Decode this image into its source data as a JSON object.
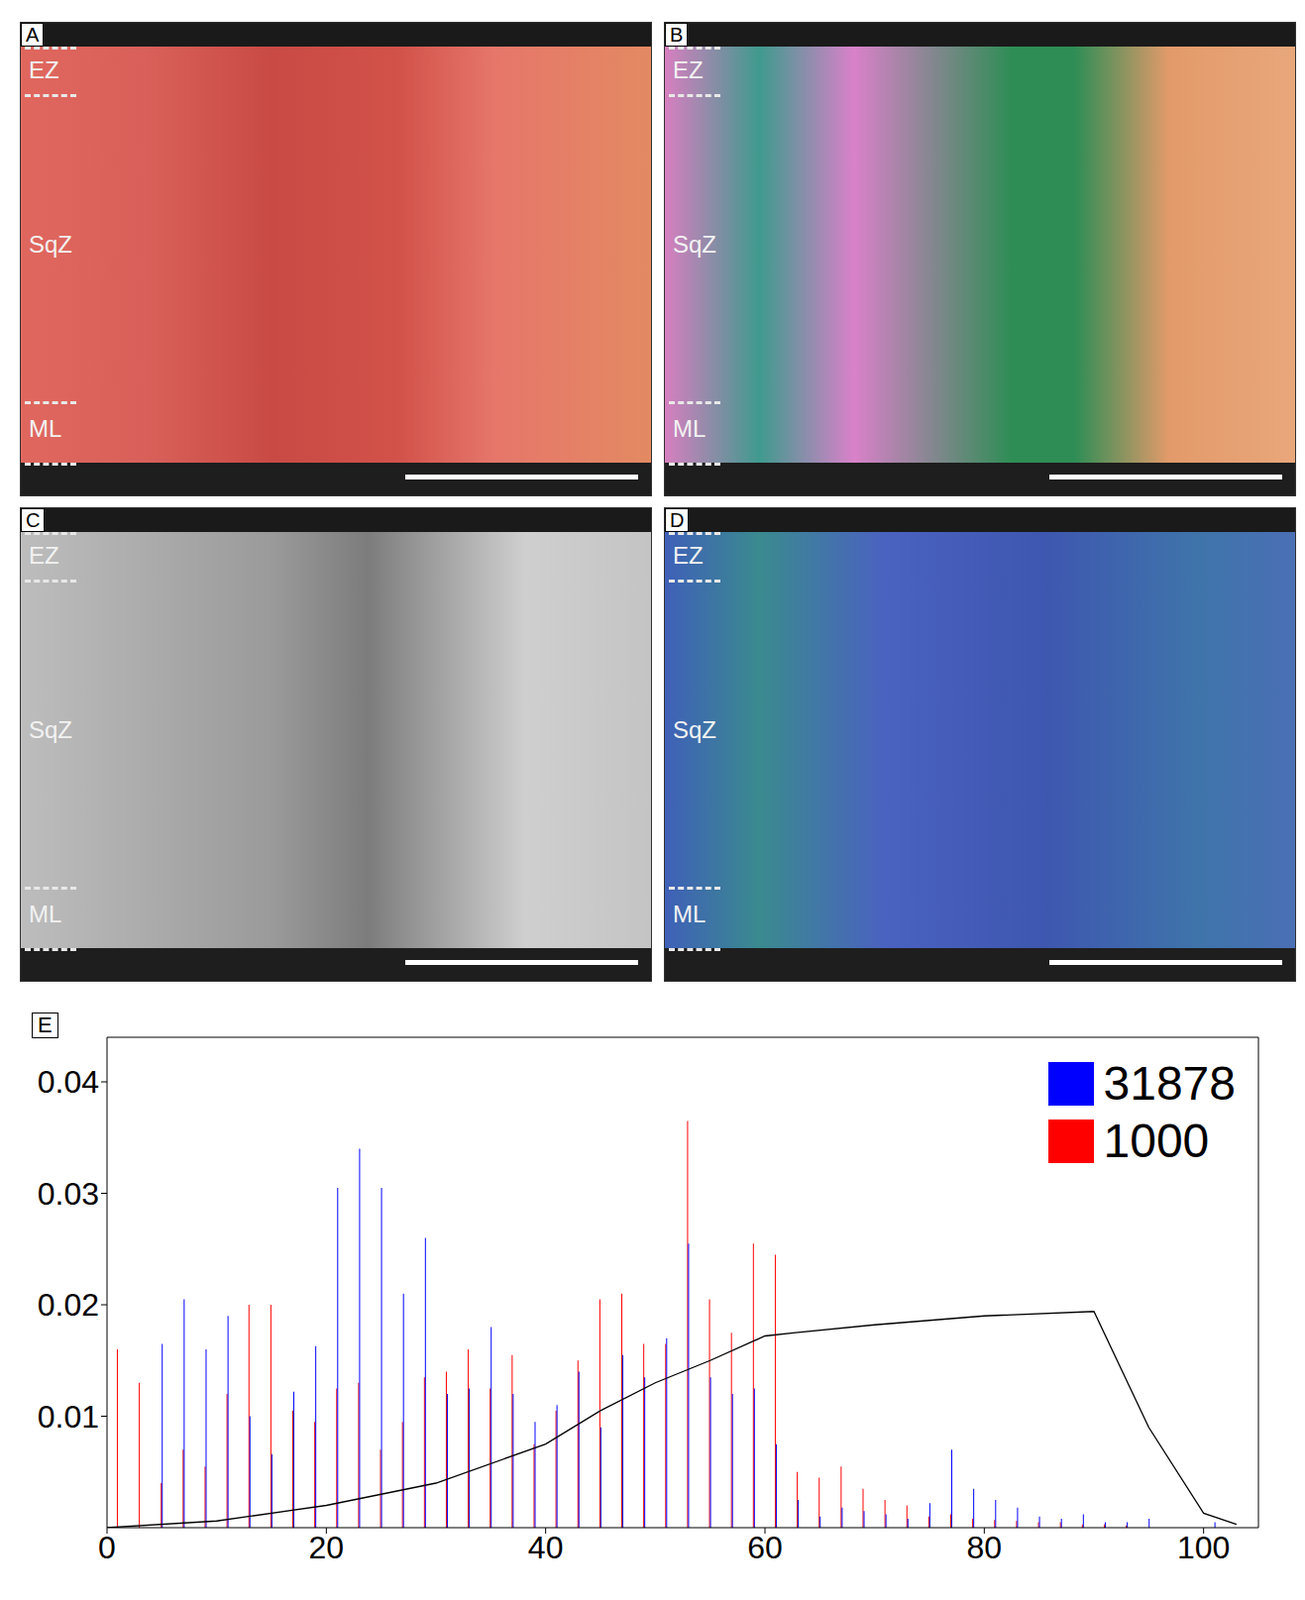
{
  "panels": [
    {
      "letter": "A",
      "labels": [
        "EZ",
        "SqZ",
        "ML"
      ]
    },
    {
      "letter": "B",
      "labels": [
        "EZ",
        "SqZ",
        "ML"
      ]
    },
    {
      "letter": "C",
      "labels": [
        "EZ",
        "SqZ",
        "ML"
      ]
    },
    {
      "letter": "D",
      "labels": [
        "EZ",
        "SqZ",
        "ML"
      ]
    }
  ],
  "chart_data": {
    "type": "histogram",
    "panel_label": "E",
    "bins": [
      0,
      2,
      4,
      6,
      8,
      10,
      12,
      14,
      16,
      18,
      20,
      22,
      24,
      26,
      28,
      30,
      32,
      34,
      36,
      38,
      40,
      42,
      44,
      46,
      48,
      50,
      52,
      54,
      56,
      58,
      60,
      62,
      64,
      66,
      68,
      70,
      72,
      74,
      76,
      78,
      80,
      82,
      84,
      86,
      88,
      90,
      92,
      94,
      96,
      98,
      100,
      102,
      104
    ],
    "series": [
      {
        "name": "31878",
        "color": "#0000ff",
        "values": [
          0,
          0,
          0.0165,
          0.0205,
          0.016,
          0.019,
          0.01,
          0.0066,
          0.0122,
          0.0163,
          0.0305,
          0.034,
          0.0305,
          0.021,
          0.026,
          0.012,
          0.0125,
          0.018,
          0.012,
          0.0095,
          0.011,
          0.014,
          0.009,
          0.0155,
          0.0135,
          0.017,
          0.0255,
          0.0135,
          0.012,
          0.0125,
          0.0075,
          0.0025,
          0.001,
          0.0018,
          0.0015,
          0.0012,
          0.0008,
          0.0022,
          0.007,
          0.0035,
          0.0025,
          0.0018,
          0.001,
          0.0008,
          0.0012,
          0.0005,
          0.0005,
          0.0008,
          0,
          0,
          0.0005,
          0
        ]
      },
      {
        "name": "1000",
        "color": "#ff0000",
        "values": [
          0.016,
          0.013,
          0.004,
          0.007,
          0.0055,
          0.012,
          0.02,
          0.02,
          0.0105,
          0.0095,
          0.0125,
          0.013,
          0.007,
          0.0095,
          0.0135,
          0.014,
          0.016,
          0.0125,
          0.0155,
          0.0075,
          0.0105,
          0.015,
          0.0205,
          0.021,
          0.0165,
          0.0165,
          0.0365,
          0.0205,
          0.0175,
          0.0255,
          0.0245,
          0.005,
          0.0045,
          0.0055,
          0.0035,
          0.0025,
          0.002,
          0.001,
          0.0012,
          0.0008,
          0.0007,
          0.0006,
          0.0005,
          0.0005,
          0.0003,
          0.0003,
          0.0002,
          0,
          0,
          0,
          0,
          0
        ]
      },
      {
        "type": "line",
        "color": "#000000",
        "x": [
          0,
          10,
          20,
          30,
          40,
          45,
          50,
          55,
          60,
          62.8,
          70,
          80,
          90,
          95,
          100,
          103
        ],
        "values": [
          0,
          0.0006,
          0.002,
          0.004,
          0.0075,
          0.0105,
          0.013,
          0.015,
          0.0172,
          0.0175,
          0.0182,
          0.019,
          0.0194,
          0.009,
          0.0013,
          0.0003
        ]
      }
    ],
    "xlim": [
      0,
      105
    ],
    "xticks": [
      0,
      20,
      40,
      60,
      80,
      100
    ],
    "ylim": [
      0,
      0.044
    ],
    "yticks": [
      0.01,
      0.02,
      0.03,
      0.04
    ],
    "grid": false,
    "legend": "top-right"
  }
}
